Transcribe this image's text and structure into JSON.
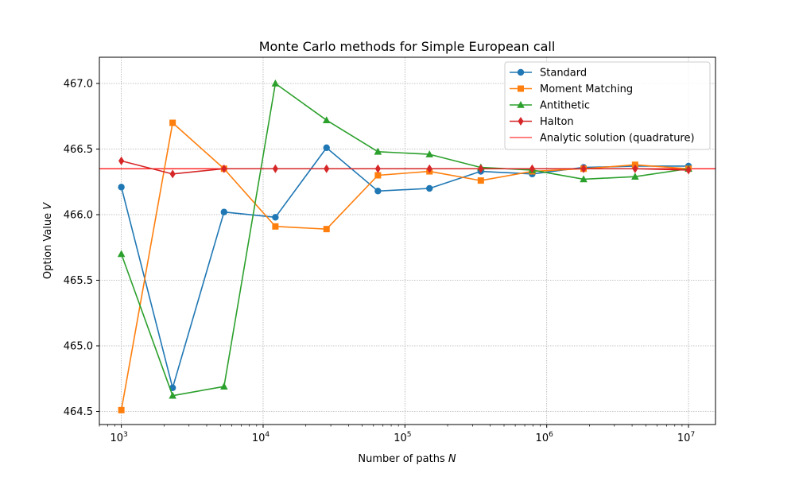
{
  "chart_data": {
    "type": "line",
    "title": "Monte Carlo methods for Simple European call",
    "xlabel": "Number of paths",
    "xlabel_var": "N",
    "ylabel": "Option Value",
    "ylabel_var": "V",
    "xscale": "log",
    "xlim": [
      700,
      15500000
    ],
    "ylim": [
      464.4,
      467.2
    ],
    "grid": true,
    "legend_position": "upper-right",
    "x": [
      1000,
      2300,
      5300,
      12200,
      28000,
      64500,
      149000,
      343000,
      790000,
      1820000,
      4200000,
      10000000
    ],
    "x_ticks": [
      {
        "value": 1000,
        "base": "10",
        "exp": "3"
      },
      {
        "value": 10000,
        "base": "10",
        "exp": "4"
      },
      {
        "value": 100000,
        "base": "10",
        "exp": "5"
      },
      {
        "value": 1000000,
        "base": "10",
        "exp": "6"
      },
      {
        "value": 10000000,
        "base": "10",
        "exp": "7"
      }
    ],
    "y_ticks": [
      464.5,
      465.0,
      465.5,
      466.0,
      466.5,
      467.0
    ],
    "y_tick_labels": [
      "464.5",
      "465.0",
      "465.5",
      "466.0",
      "466.5",
      "467.0"
    ],
    "series": [
      {
        "name": "Standard",
        "color": "#1f77b4",
        "marker": "circle",
        "values": [
          466.21,
          464.68,
          466.02,
          465.98,
          466.51,
          466.18,
          466.2,
          466.33,
          466.31,
          466.36,
          466.37,
          466.37
        ]
      },
      {
        "name": "Moment Matching",
        "color": "#ff7f0e",
        "marker": "square",
        "values": [
          464.51,
          466.7,
          466.35,
          465.91,
          465.89,
          466.3,
          466.33,
          466.26,
          466.33,
          466.35,
          466.38,
          466.35
        ]
      },
      {
        "name": "Antithetic",
        "color": "#2ca02c",
        "marker": "triangle",
        "values": [
          465.7,
          464.62,
          464.69,
          467.0,
          466.72,
          466.48,
          466.46,
          466.36,
          466.34,
          466.27,
          466.29,
          466.35
        ]
      },
      {
        "name": "Halton",
        "color": "#d62728",
        "marker": "diamond",
        "values": [
          466.41,
          466.31,
          466.35,
          466.35,
          466.35,
          466.35,
          466.35,
          466.35,
          466.35,
          466.35,
          466.35,
          466.34
        ]
      }
    ],
    "reference_line": {
      "name": "Analytic solution (quadrature)",
      "color": "#ff0000",
      "value": 466.35
    }
  }
}
